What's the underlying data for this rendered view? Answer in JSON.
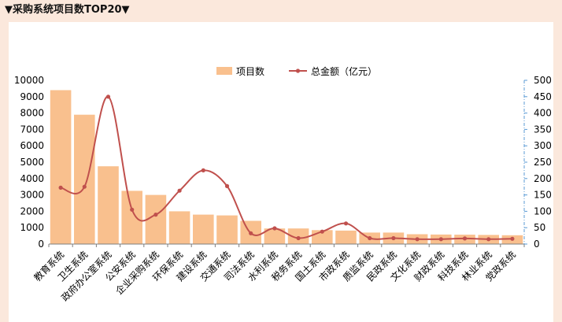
{
  "header": {
    "title": "▼采购系统项目数TOP20▼"
  },
  "chart_data": {
    "type": "bar",
    "title": "",
    "categories": [
      "教育系统",
      "卫生系统",
      "政府办公室系统",
      "公安系统",
      "企业采购系统",
      "环保系统",
      "建设系统",
      "交通系统",
      "司法系统",
      "水利系统",
      "税务系统",
      "国土系统",
      "市政系统",
      "质监系统",
      "民政系统",
      "文化系统",
      "财政系统",
      "科技系统",
      "林业系统",
      "党政系统"
    ],
    "series": [
      {
        "name": "项目数",
        "type": "bar",
        "axis": "left",
        "color": "#f9c08e",
        "values": [
          9400,
          7900,
          4750,
          3250,
          3000,
          2000,
          1800,
          1750,
          1420,
          950,
          950,
          850,
          820,
          700,
          700,
          600,
          580,
          570,
          560,
          540
        ]
      },
      {
        "name": "总金额（亿元）",
        "type": "line",
        "axis": "right",
        "color": "#c0504d",
        "values": [
          172,
          175,
          450,
          105,
          90,
          163,
          225,
          177,
          33,
          48,
          18,
          38,
          63,
          18,
          18,
          15,
          15,
          17,
          15,
          16
        ]
      }
    ],
    "y_left": {
      "min": 0,
      "max": 10000,
      "ticks": [
        "0",
        "1000",
        "2000",
        "3000",
        "4000",
        "5000",
        "6000",
        "7000",
        "8000",
        "9000",
        "10000"
      ]
    },
    "y_right": {
      "min": 0,
      "max": 500,
      "ticks": [
        "0",
        "50",
        "100",
        "150",
        "200",
        "250",
        "300",
        "350",
        "400",
        "450",
        "500"
      ]
    },
    "legend": {
      "position": "top-center"
    },
    "grid": false
  }
}
